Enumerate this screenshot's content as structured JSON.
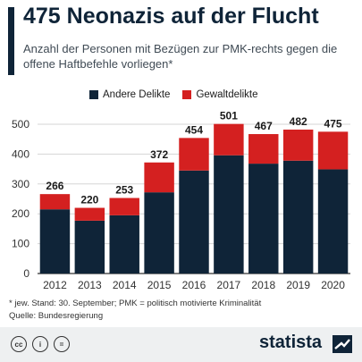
{
  "header": {
    "title": "475 Neonazis auf der Flucht",
    "subtitle": "Anzahl der Personen mit Bezügen zur PMK-rechts gegen die offene Haftbefehle vorliegen*"
  },
  "legend": {
    "items": [
      {
        "label": "Andere Delikte",
        "color": "#0f2438"
      },
      {
        "label": "Gewaltdelikte",
        "color": "#d42020"
      }
    ]
  },
  "chart_data": {
    "type": "bar",
    "stacked": true,
    "categories": [
      "2012",
      "2013",
      "2014",
      "2015",
      "2016",
      "2017",
      "2018",
      "2019",
      "2020"
    ],
    "series": [
      {
        "name": "Andere Delikte",
        "color": "#0f2438",
        "values": [
          215,
          177,
          195,
          272,
          345,
          396,
          368,
          378,
          349
        ]
      },
      {
        "name": "Gewaltdelikte",
        "color": "#d42020",
        "values": [
          51,
          43,
          58,
          100,
          109,
          105,
          99,
          104,
          126
        ]
      }
    ],
    "totals": [
      266,
      220,
      253,
      372,
      454,
      501,
      467,
      482,
      475
    ],
    "ylim": [
      0,
      500
    ],
    "yticks": [
      0,
      100,
      200,
      300,
      400,
      500
    ],
    "grid": true,
    "legend_position": "top",
    "xlabel": "",
    "ylabel": ""
  },
  "footnote": {
    "line1": "* jew. Stand: 30. September; PMK = politisch motivierte Kriminalität",
    "line2": "Quelle: Bundesregierung"
  },
  "footer": {
    "brand": "statista",
    "license_icons": [
      "creative-commons-icon",
      "attribution-icon",
      "no-derivatives-icon"
    ]
  }
}
